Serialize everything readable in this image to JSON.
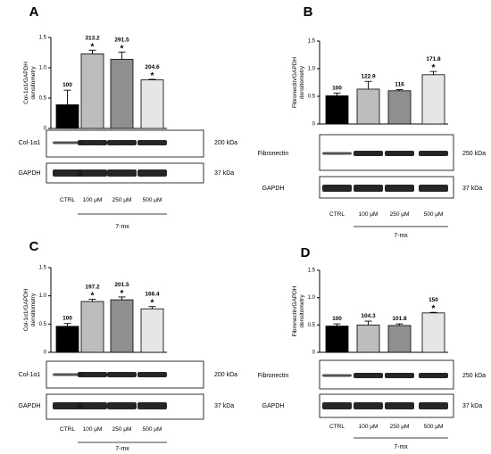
{
  "chart_data": [
    {
      "panel": "A",
      "type": "bar",
      "ylabel": "Col-1α1/GAPDH densitometry",
      "ylim": [
        0,
        1.5
      ],
      "yticks": [
        "0",
        "0.5",
        "1.0",
        "1.5"
      ],
      "categories": [
        "CTRL",
        "100 μM",
        "250 μM",
        "500 μM"
      ],
      "values": [
        0.39,
        1.23,
        1.14,
        0.8
      ],
      "errors": [
        0.24,
        0.06,
        0.12,
        0.01
      ],
      "data_labels": [
        "100",
        "313.2",
        "291.5",
        "204.6"
      ],
      "significant": [
        false,
        true,
        true,
        true
      ],
      "group_label": "7-mx",
      "blots": [
        {
          "protein": "Col-1α1",
          "size": "200 kDa"
        },
        {
          "protein": "GAPDH",
          "size": "37 kDa"
        }
      ]
    },
    {
      "panel": "B",
      "type": "bar",
      "ylabel": "Fibronectin/GAPDH densitometry",
      "ylim": [
        0,
        1.5
      ],
      "yticks": [
        "0",
        "0.5",
        "1.0",
        "1.5"
      ],
      "categories": [
        "CTRL",
        "100 μM",
        "250 μM",
        "500 μM"
      ],
      "values": [
        0.51,
        0.63,
        0.6,
        0.89
      ],
      "errors": [
        0.05,
        0.14,
        0.02,
        0.06
      ],
      "data_labels": [
        "100",
        "122.9",
        "116",
        "171.8"
      ],
      "significant": [
        false,
        false,
        false,
        true
      ],
      "group_label": "7-mx",
      "blots": [
        {
          "protein": "Fibronectin",
          "size": "250 kDa"
        },
        {
          "protein": "GAPDH",
          "size": "37 kDa"
        }
      ]
    },
    {
      "panel": "C",
      "type": "bar",
      "ylabel": "Col-1α1/GAPDH densitometry",
      "ylim": [
        0,
        1.5
      ],
      "yticks": [
        "0",
        "0.5",
        "1.0",
        "1.5"
      ],
      "categories": [
        "CTRL",
        "100 μM",
        "250 μM",
        "500 μM"
      ],
      "values": [
        0.46,
        0.9,
        0.93,
        0.77
      ],
      "errors": [
        0.05,
        0.04,
        0.05,
        0.04
      ],
      "data_labels": [
        "100",
        "197.2",
        "201.5",
        "166.4"
      ],
      "significant": [
        false,
        true,
        true,
        true
      ],
      "group_label": "7-mx",
      "blots": [
        {
          "protein": "Col-1α1",
          "size": "200 kDa"
        },
        {
          "protein": "GAPDH",
          "size": "37 kDa"
        }
      ]
    },
    {
      "panel": "D",
      "type": "bar",
      "ylabel": "Fibronectin/GAPDH densitometry",
      "ylim": [
        0,
        1.5
      ],
      "yticks": [
        "0",
        "0.5",
        "1.0",
        "1.5"
      ],
      "categories": [
        "CTRL",
        "100 μM",
        "250 μM",
        "500 μM"
      ],
      "values": [
        0.48,
        0.5,
        0.49,
        0.72
      ],
      "errors": [
        0.04,
        0.07,
        0.03,
        0.01
      ],
      "data_labels": [
        "100",
        "104.3",
        "101.8",
        "150"
      ],
      "significant": [
        false,
        false,
        false,
        true
      ],
      "group_label": "7-mx",
      "blots": [
        {
          "protein": "Fibronectin",
          "size": "250 kDa"
        },
        {
          "protein": "GAPDH",
          "size": "37 kDa"
        }
      ]
    }
  ],
  "bar_colors": [
    "#000000",
    "#bdbdbd",
    "#8f8f8f",
    "#e6e6e6"
  ],
  "significance_mark": "*"
}
